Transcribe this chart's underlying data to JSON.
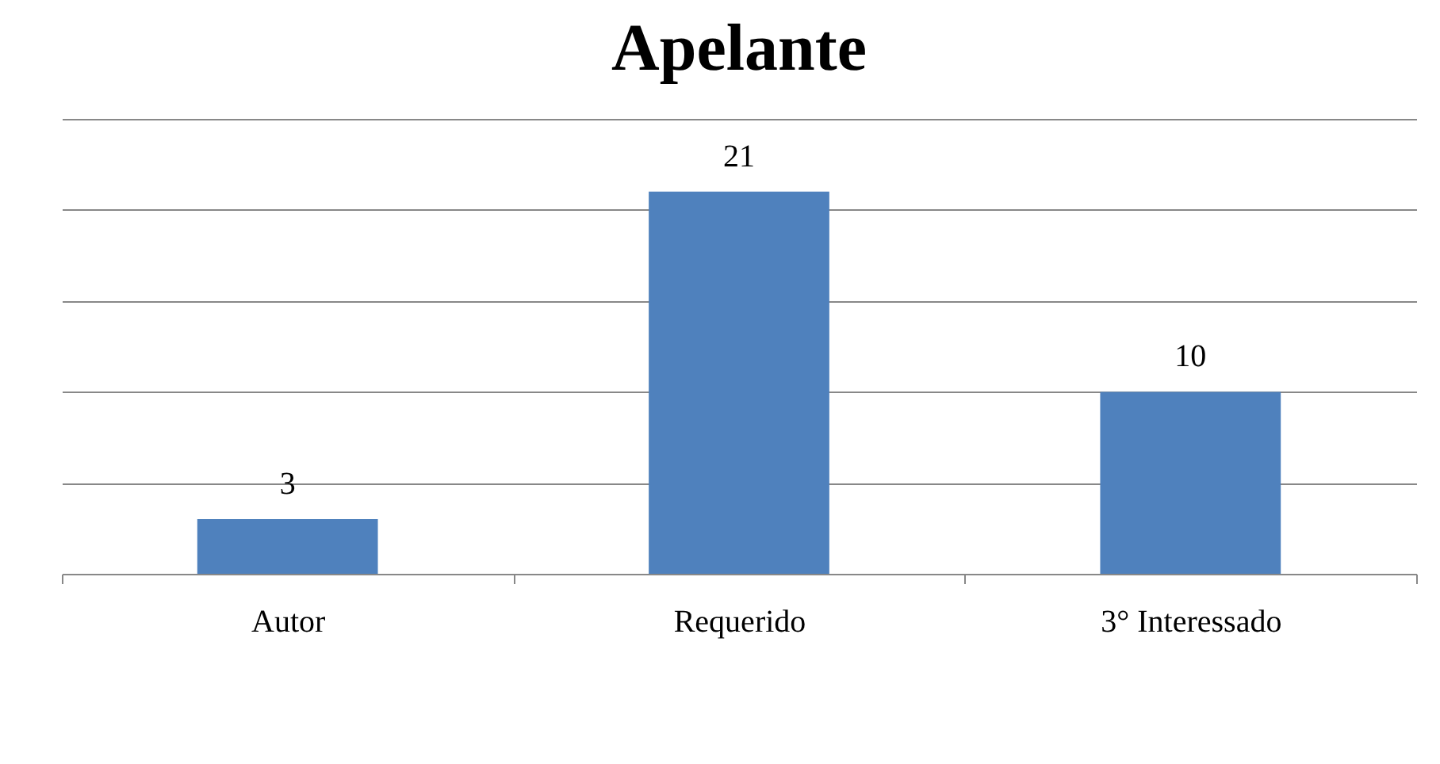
{
  "chart_data": {
    "type": "bar",
    "title": "Apelante",
    "categories": [
      "Autor",
      "Requerido",
      "3° Interessado"
    ],
    "values": [
      3,
      21,
      10
    ],
    "color": "#4f81bd",
    "data_labels": true,
    "ylim": [
      0,
      25
    ],
    "yticks": [
      {
        "value": 0,
        "label": null
      },
      {
        "value": 5,
        "label": null
      },
      {
        "value": 10,
        "label": null
      },
      {
        "value": 15,
        "label": null
      },
      {
        "value": 20,
        "label": null
      },
      {
        "value": 25,
        "label": null
      }
    ],
    "grid": "y",
    "tick_labels": "x"
  }
}
